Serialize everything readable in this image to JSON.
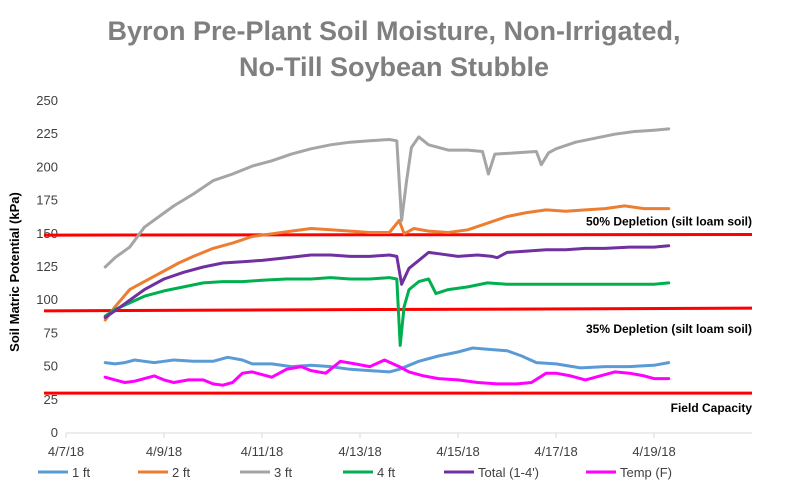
{
  "chart_data": {
    "type": "line",
    "title_lines": [
      "Byron Pre-Plant Soil Moisture, Non-Irrigated,",
      "No-Till Soybean Stubble"
    ],
    "ylabel": "Soil Matric Potential (kPa)",
    "xlabel": "",
    "ylim": [
      0,
      250
    ],
    "yticks": [
      0,
      25,
      50,
      75,
      100,
      125,
      150,
      175,
      200,
      225,
      250
    ],
    "xlim": [
      0,
      14
    ],
    "x_ticks": [
      {
        "label": "4/7/18",
        "x": 0
      },
      {
        "label": "4/9/18",
        "x": 2
      },
      {
        "label": "4/11/18",
        "x": 4
      },
      {
        "label": "4/13/18",
        "x": 6
      },
      {
        "label": "4/15/18",
        "x": 8
      },
      {
        "label": "4/17/18",
        "x": 10
      },
      {
        "label": "4/19/18",
        "x": 12
      }
    ],
    "x_unit": "days since 4/7/18",
    "reference_lines": [
      {
        "label": "50% Depletion (silt loam soil)",
        "y0": 149,
        "y1": 149.5,
        "color": "#ff0000"
      },
      {
        "label": "35% Depletion (silt loam soil)",
        "y0": 92,
        "y1": 94,
        "color": "#ff0000"
      },
      {
        "label": "Field Capacity",
        "y0": 30,
        "y1": 30,
        "color": "#ff0000"
      }
    ],
    "series": [
      {
        "name": "1 ft",
        "color": "#5b9bd5",
        "points": [
          [
            0.8,
            53
          ],
          [
            1.0,
            52
          ],
          [
            1.2,
            53
          ],
          [
            1.4,
            55
          ],
          [
            1.6,
            54
          ],
          [
            1.8,
            53
          ],
          [
            2.0,
            54
          ],
          [
            2.2,
            55
          ],
          [
            2.6,
            54
          ],
          [
            3.0,
            54
          ],
          [
            3.3,
            57
          ],
          [
            3.6,
            55
          ],
          [
            3.8,
            52
          ],
          [
            4.2,
            52
          ],
          [
            4.6,
            50
          ],
          [
            5.0,
            51
          ],
          [
            5.4,
            50
          ],
          [
            5.8,
            48
          ],
          [
            6.2,
            47
          ],
          [
            6.6,
            46
          ],
          [
            6.8,
            48
          ],
          [
            7.2,
            54
          ],
          [
            7.6,
            58
          ],
          [
            8.0,
            61
          ],
          [
            8.3,
            64
          ],
          [
            8.6,
            63
          ],
          [
            9.0,
            62
          ],
          [
            9.3,
            58
          ],
          [
            9.6,
            53
          ],
          [
            10.0,
            52
          ],
          [
            10.5,
            49
          ],
          [
            11.0,
            50
          ],
          [
            11.5,
            50
          ],
          [
            12.0,
            51
          ],
          [
            12.3,
            53
          ]
        ]
      },
      {
        "name": "2 ft",
        "color": "#ed7d31",
        "points": [
          [
            0.8,
            85
          ],
          [
            1.0,
            95
          ],
          [
            1.3,
            108
          ],
          [
            1.6,
            114
          ],
          [
            2.0,
            122
          ],
          [
            2.3,
            128
          ],
          [
            2.6,
            133
          ],
          [
            3.0,
            139
          ],
          [
            3.4,
            143
          ],
          [
            3.8,
            148
          ],
          [
            4.2,
            150
          ],
          [
            4.6,
            152
          ],
          [
            5.0,
            154
          ],
          [
            5.4,
            153
          ],
          [
            5.8,
            152
          ],
          [
            6.2,
            151
          ],
          [
            6.6,
            151
          ],
          [
            6.8,
            160
          ],
          [
            6.9,
            150
          ],
          [
            7.1,
            154
          ],
          [
            7.4,
            152
          ],
          [
            7.8,
            151
          ],
          [
            8.2,
            153
          ],
          [
            8.6,
            158
          ],
          [
            9.0,
            163
          ],
          [
            9.4,
            166
          ],
          [
            9.8,
            168
          ],
          [
            10.2,
            167
          ],
          [
            10.6,
            168
          ],
          [
            11.0,
            169
          ],
          [
            11.4,
            171
          ],
          [
            11.8,
            169
          ],
          [
            12.3,
            169
          ]
        ]
      },
      {
        "name": "3 ft",
        "color": "#a5a5a5",
        "points": [
          [
            0.8,
            125
          ],
          [
            1.0,
            132
          ],
          [
            1.3,
            140
          ],
          [
            1.6,
            155
          ],
          [
            1.9,
            163
          ],
          [
            2.2,
            171
          ],
          [
            2.6,
            180
          ],
          [
            3.0,
            190
          ],
          [
            3.4,
            195
          ],
          [
            3.8,
            201
          ],
          [
            4.2,
            205
          ],
          [
            4.6,
            210
          ],
          [
            5.0,
            214
          ],
          [
            5.4,
            217
          ],
          [
            5.8,
            219
          ],
          [
            6.2,
            220
          ],
          [
            6.6,
            221
          ],
          [
            6.75,
            220
          ],
          [
            6.85,
            160
          ],
          [
            6.95,
            190
          ],
          [
            7.05,
            215
          ],
          [
            7.2,
            223
          ],
          [
            7.4,
            217
          ],
          [
            7.8,
            213
          ],
          [
            8.2,
            213
          ],
          [
            8.5,
            212
          ],
          [
            8.62,
            195
          ],
          [
            8.75,
            210
          ],
          [
            9.2,
            211
          ],
          [
            9.6,
            212
          ],
          [
            9.7,
            202
          ],
          [
            9.85,
            211
          ],
          [
            10.0,
            214
          ],
          [
            10.4,
            219
          ],
          [
            10.8,
            222
          ],
          [
            11.2,
            225
          ],
          [
            11.6,
            227
          ],
          [
            12.0,
            228
          ],
          [
            12.3,
            229
          ]
        ]
      },
      {
        "name": "4 ft",
        "color": "#00b050",
        "points": [
          [
            0.8,
            88
          ],
          [
            1.0,
            93
          ],
          [
            1.3,
            98
          ],
          [
            1.6,
            103
          ],
          [
            2.0,
            107
          ],
          [
            2.4,
            110
          ],
          [
            2.8,
            113
          ],
          [
            3.2,
            114
          ],
          [
            3.6,
            114
          ],
          [
            4.0,
            115
          ],
          [
            4.5,
            116
          ],
          [
            5.0,
            116
          ],
          [
            5.4,
            117
          ],
          [
            5.8,
            116
          ],
          [
            6.2,
            116
          ],
          [
            6.6,
            117
          ],
          [
            6.75,
            116
          ],
          [
            6.82,
            66
          ],
          [
            6.9,
            95
          ],
          [
            7.0,
            108
          ],
          [
            7.2,
            114
          ],
          [
            7.4,
            116
          ],
          [
            7.55,
            105
          ],
          [
            7.8,
            108
          ],
          [
            8.2,
            110
          ],
          [
            8.6,
            113
          ],
          [
            9.0,
            112
          ],
          [
            9.5,
            112
          ],
          [
            10.0,
            112
          ],
          [
            10.5,
            112
          ],
          [
            11.0,
            112
          ],
          [
            11.5,
            112
          ],
          [
            12.0,
            112
          ],
          [
            12.3,
            113
          ]
        ]
      },
      {
        "name": "Total (1-4')",
        "color": "#7030a0",
        "points": [
          [
            0.8,
            87
          ],
          [
            1.0,
            92
          ],
          [
            1.3,
            100
          ],
          [
            1.6,
            108
          ],
          [
            2.0,
            116
          ],
          [
            2.4,
            121
          ],
          [
            2.8,
            125
          ],
          [
            3.2,
            128
          ],
          [
            3.6,
            129
          ],
          [
            4.0,
            130
          ],
          [
            4.5,
            132
          ],
          [
            5.0,
            134
          ],
          [
            5.4,
            134
          ],
          [
            5.8,
            133
          ],
          [
            6.2,
            133
          ],
          [
            6.6,
            134
          ],
          [
            6.75,
            133
          ],
          [
            6.85,
            112
          ],
          [
            7.0,
            124
          ],
          [
            7.2,
            130
          ],
          [
            7.4,
            136
          ],
          [
            7.6,
            135
          ],
          [
            8.0,
            133
          ],
          [
            8.4,
            134
          ],
          [
            8.7,
            133
          ],
          [
            8.8,
            132
          ],
          [
            9.0,
            136
          ],
          [
            9.4,
            137
          ],
          [
            9.8,
            138
          ],
          [
            10.2,
            138
          ],
          [
            10.6,
            139
          ],
          [
            11.0,
            139
          ],
          [
            11.5,
            140
          ],
          [
            12.0,
            140
          ],
          [
            12.3,
            141
          ]
        ]
      },
      {
        "name": "Temp (F)",
        "color": "#ff00ff",
        "points": [
          [
            0.8,
            42
          ],
          [
            1.0,
            40
          ],
          [
            1.2,
            38
          ],
          [
            1.4,
            39
          ],
          [
            1.6,
            41
          ],
          [
            1.8,
            43
          ],
          [
            2.0,
            40
          ],
          [
            2.2,
            38
          ],
          [
            2.5,
            40
          ],
          [
            2.8,
            40
          ],
          [
            3.0,
            37
          ],
          [
            3.2,
            36
          ],
          [
            3.4,
            38
          ],
          [
            3.6,
            45
          ],
          [
            3.8,
            46
          ],
          [
            4.0,
            44
          ],
          [
            4.2,
            42
          ],
          [
            4.5,
            48
          ],
          [
            4.8,
            50
          ],
          [
            5.0,
            47
          ],
          [
            5.3,
            45
          ],
          [
            5.6,
            54
          ],
          [
            5.9,
            52
          ],
          [
            6.2,
            50
          ],
          [
            6.5,
            55
          ],
          [
            6.8,
            50
          ],
          [
            7.0,
            46
          ],
          [
            7.3,
            43
          ],
          [
            7.6,
            41
          ],
          [
            8.0,
            40
          ],
          [
            8.4,
            38
          ],
          [
            8.8,
            37
          ],
          [
            9.2,
            37
          ],
          [
            9.5,
            38
          ],
          [
            9.8,
            45
          ],
          [
            10.0,
            45
          ],
          [
            10.3,
            43
          ],
          [
            10.6,
            40
          ],
          [
            10.9,
            43
          ],
          [
            11.2,
            46
          ],
          [
            11.5,
            45
          ],
          [
            11.8,
            43
          ],
          [
            12.0,
            41
          ],
          [
            12.3,
            41
          ]
        ]
      }
    ],
    "legend_position": "bottom",
    "grid": false
  }
}
